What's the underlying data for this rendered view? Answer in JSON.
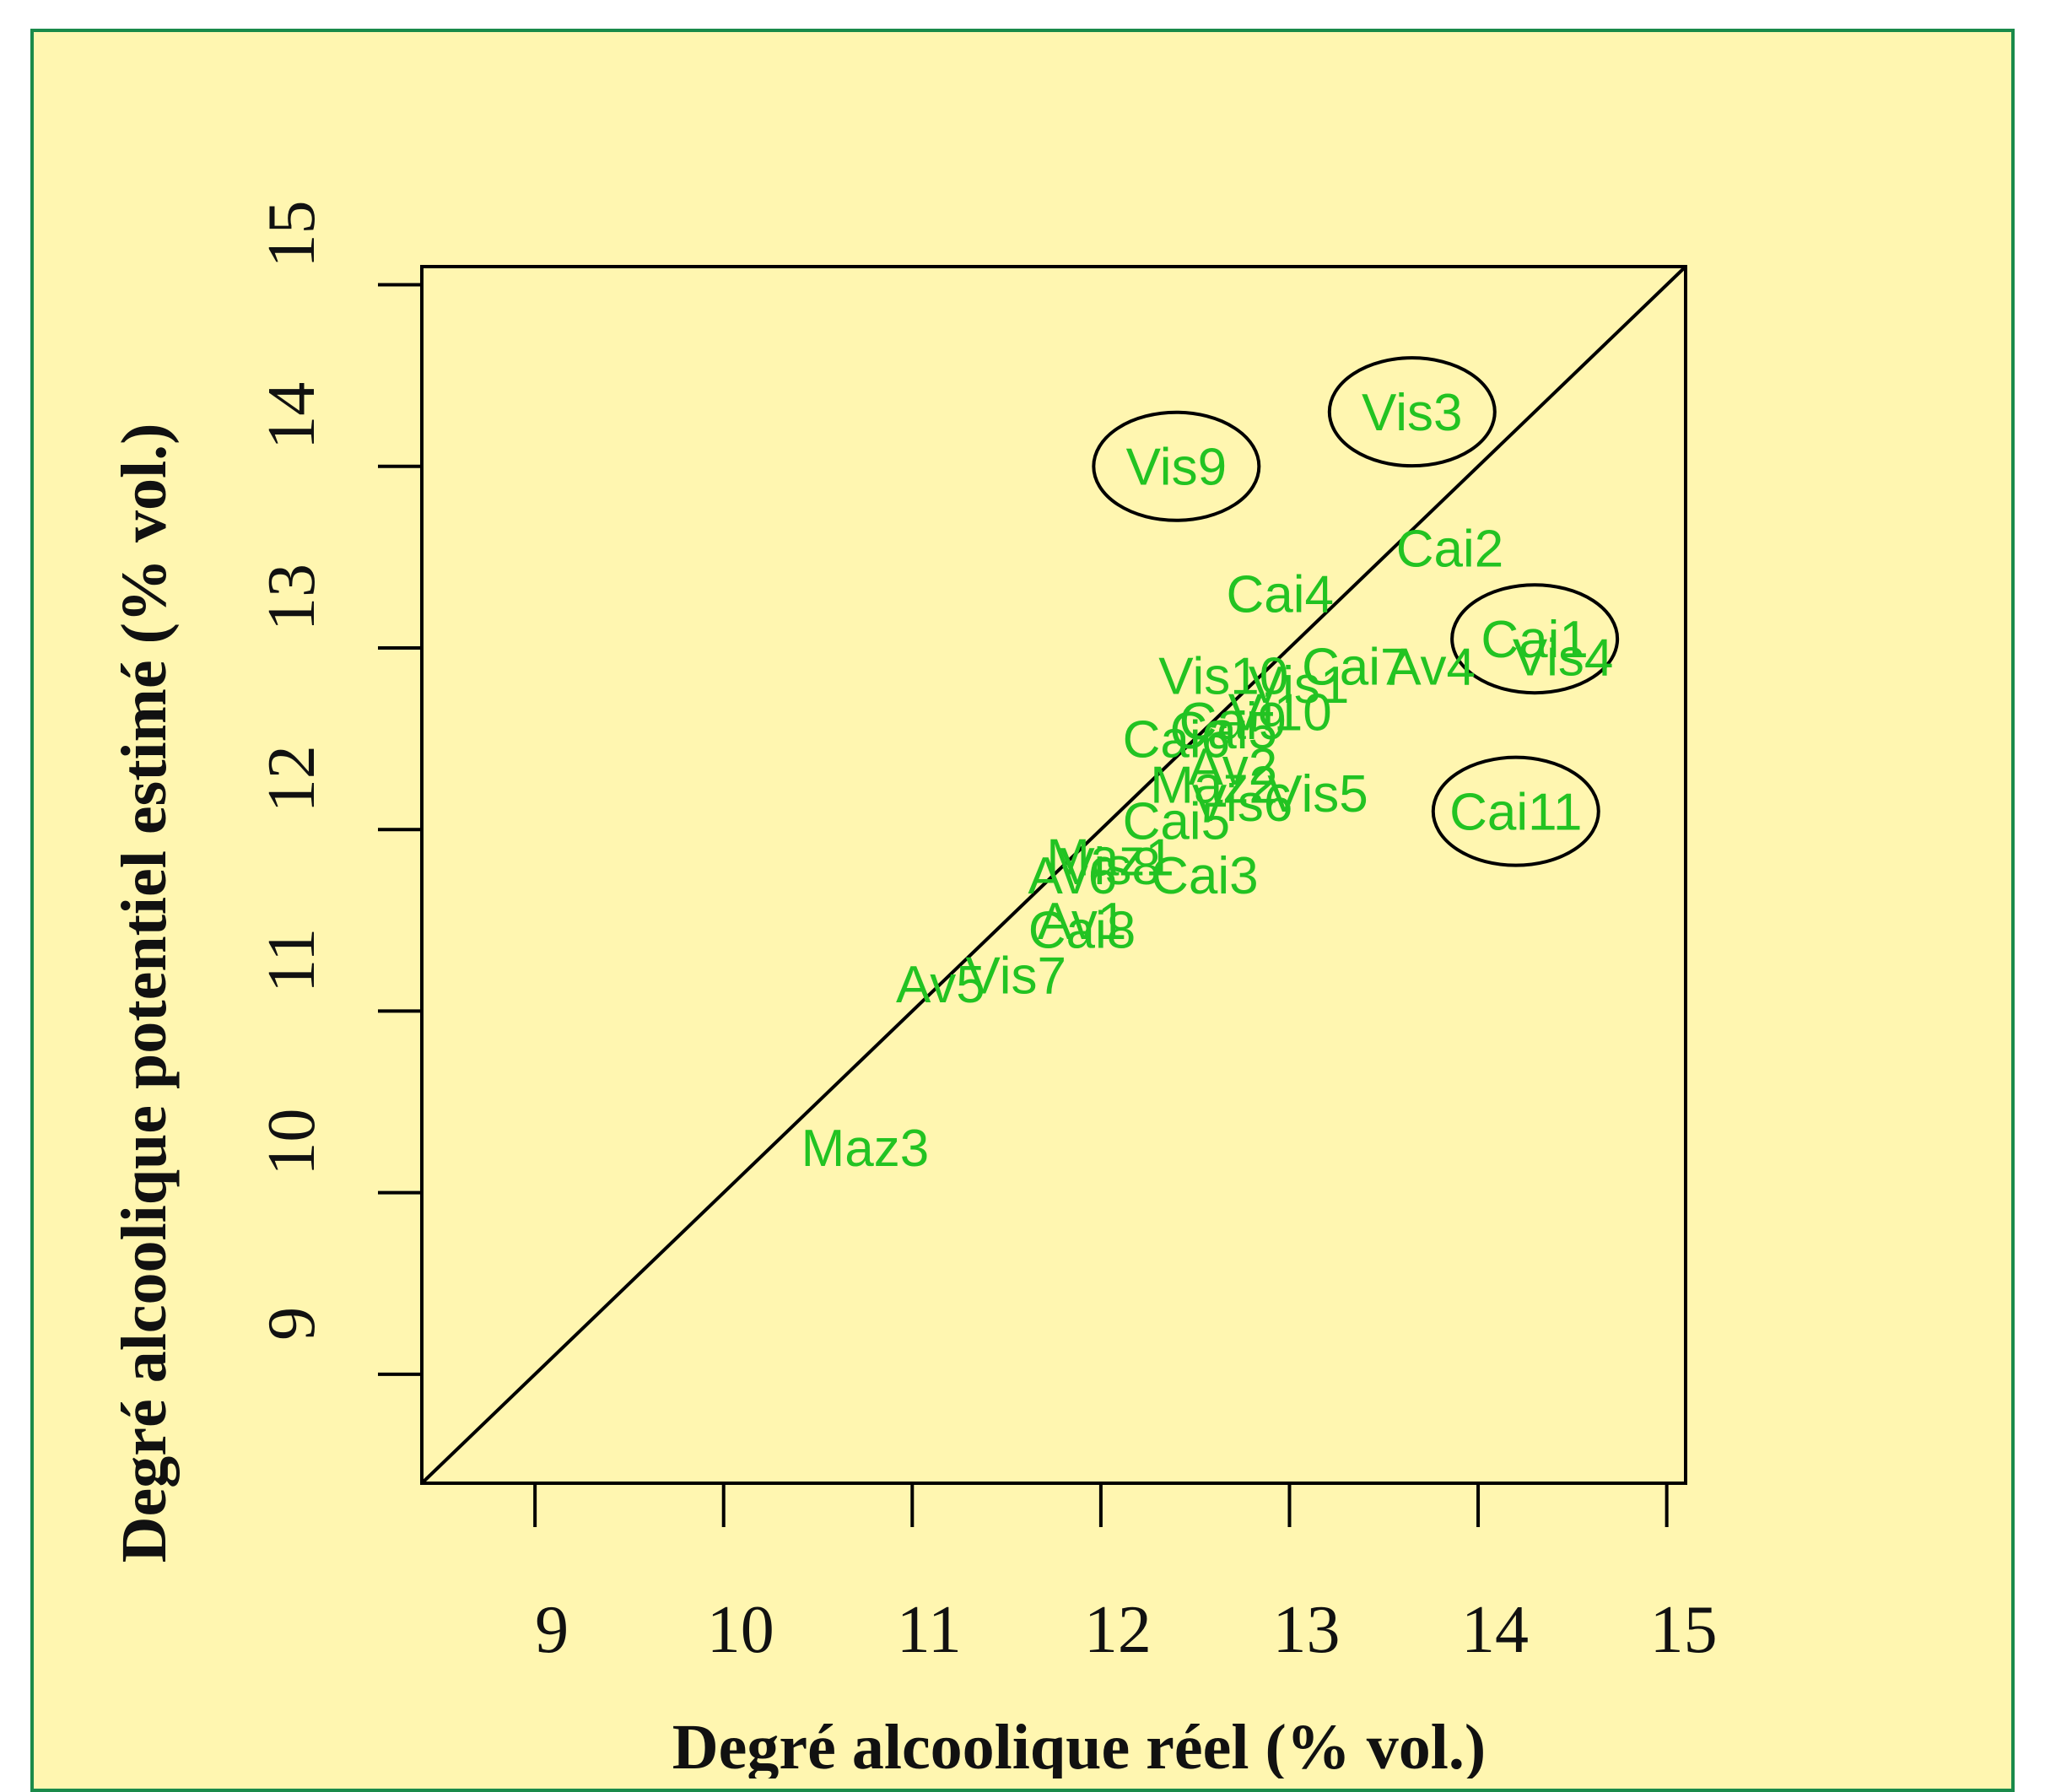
{
  "chart_data": {
    "type": "scatter",
    "xlabel": "Degré alcoolique réel (% vol.)",
    "ylabel": "Degré alcoolique potentiel estimé (% vol.)",
    "xlim": [
      8.4,
      15.1
    ],
    "ylim": [
      8.4,
      15.1
    ],
    "xticks": [
      9,
      10,
      11,
      12,
      13,
      14,
      15
    ],
    "yticks": [
      9,
      10,
      11,
      12,
      13,
      14,
      15
    ],
    "reference_line": "y = x",
    "point_color": "#22c322",
    "highlight_color": "#000000",
    "points": [
      {
        "label": "Vis9",
        "x": 12.4,
        "y": 14.0,
        "highlighted": true
      },
      {
        "label": "Vis3",
        "x": 13.65,
        "y": 14.3,
        "highlighted": true
      },
      {
        "label": "Cai2",
        "x": 13.85,
        "y": 13.55
      },
      {
        "label": "Cai4",
        "x": 12.95,
        "y": 13.3
      },
      {
        "label": "Cai1",
        "x": 14.3,
        "y": 13.05,
        "highlighted": true
      },
      {
        "label": "Vis4",
        "x": 14.45,
        "y": 12.95
      },
      {
        "label": "Av4",
        "x": 13.75,
        "y": 12.9
      },
      {
        "label": "Cai7",
        "x": 13.35,
        "y": 12.9
      },
      {
        "label": "Vis10",
        "x": 12.65,
        "y": 12.85
      },
      {
        "label": "Vis1",
        "x": 13.05,
        "y": 12.8
      },
      {
        "label": "Vi10",
        "x": 12.95,
        "y": 12.65
      },
      {
        "label": "Cai9",
        "x": 12.7,
        "y": 12.6
      },
      {
        "label": "Cai6",
        "x": 12.4,
        "y": 12.5
      },
      {
        "label": "Cai5",
        "x": 12.65,
        "y": 12.55
      },
      {
        "label": "Av2",
        "x": 12.7,
        "y": 12.35
      },
      {
        "label": "Maz2",
        "x": 12.6,
        "y": 12.25
      },
      {
        "label": "Vis5",
        "x": 13.15,
        "y": 12.2
      },
      {
        "label": "Cai11",
        "x": 14.2,
        "y": 12.1,
        "highlighted": true
      },
      {
        "label": "Vis6",
        "x": 12.75,
        "y": 12.15
      },
      {
        "label": "Cai5",
        "x": 12.4,
        "y": 12.05
      },
      {
        "label": "Maz1",
        "x": 12.05,
        "y": 11.85
      },
      {
        "label": "Vis8",
        "x": 12.05,
        "y": 11.8
      },
      {
        "label": "Cai3",
        "x": 12.55,
        "y": 11.75
      },
      {
        "label": "Av6",
        "x": 11.85,
        "y": 11.75
      },
      {
        "label": "Av1",
        "x": 11.9,
        "y": 11.5
      },
      {
        "label": "Cai8",
        "x": 11.9,
        "y": 11.45
      },
      {
        "label": "Vis7",
        "x": 11.55,
        "y": 11.2
      },
      {
        "label": "Av5",
        "x": 11.15,
        "y": 11.15
      },
      {
        "label": "Maz3",
        "x": 10.75,
        "y": 10.25
      }
    ]
  }
}
